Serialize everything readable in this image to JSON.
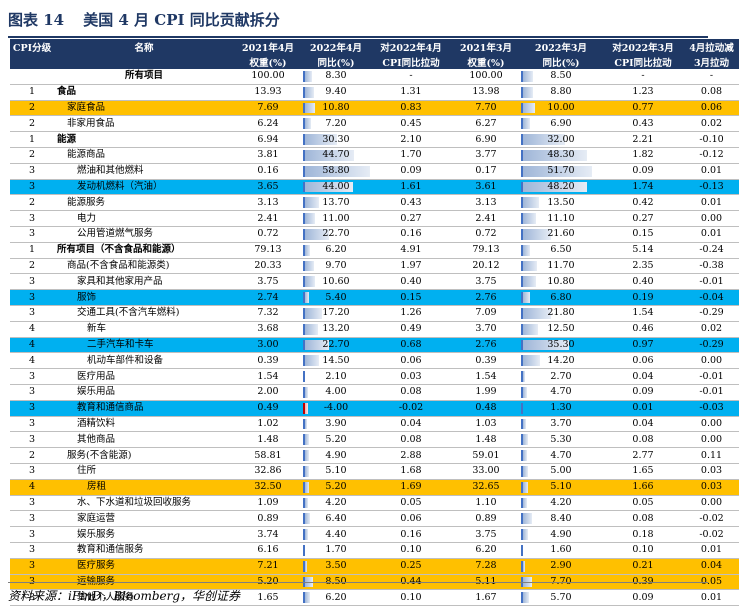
{
  "title": {
    "figure": "图表 14",
    "text": "美国 4 月 CPI 同比贡献拆分"
  },
  "headers": [
    {
      "l1": "CPI分级",
      "l2": ""
    },
    {
      "l1": "名称",
      "l2": ""
    },
    {
      "l1": "2021年4月",
      "l2": "权重(%)"
    },
    {
      "l1": "2022年4月",
      "l2": "同比(%)"
    },
    {
      "l1": "对2022年4月",
      "l2": "CPI同比拉动"
    },
    {
      "l1": "2021年3月",
      "l2": "权重(%)"
    },
    {
      "l1": "2022年3月",
      "l2": "同比(%)"
    },
    {
      "l1": "对2022年3月",
      "l2": "CPI同比拉动"
    },
    {
      "l1": "4月拉动减",
      "l2": "3月拉动"
    }
  ],
  "rows": [
    {
      "level": "",
      "name": "所有项目",
      "w21_4": "100.00",
      "y22_4": "8.30",
      "c22_4": "-",
      "w21_3": "100.00",
      "y22_3": "8.50",
      "c22_3": "-",
      "diff": "-",
      "bold": true,
      "center": true,
      "hl": ""
    },
    {
      "level": "1",
      "name": "食品",
      "w21_4": "13.93",
      "y22_4": "9.40",
      "c22_4": "1.31",
      "w21_3": "13.98",
      "y22_3": "8.80",
      "c22_3": "1.23",
      "diff": "0.08",
      "bold": true,
      "hl": ""
    },
    {
      "level": "2",
      "name": "家庭食品",
      "w21_4": "7.69",
      "y22_4": "10.80",
      "c22_4": "0.83",
      "w21_3": "7.70",
      "y22_3": "10.00",
      "c22_3": "0.77",
      "diff": "0.06",
      "hl": "yellow"
    },
    {
      "level": "2",
      "name": "非家用食品",
      "w21_4": "6.24",
      "y22_4": "7.20",
      "c22_4": "0.45",
      "w21_3": "6.27",
      "y22_3": "6.90",
      "c22_3": "0.43",
      "diff": "0.02",
      "hl": ""
    },
    {
      "level": "1",
      "name": "能源",
      "w21_4": "6.94",
      "y22_4": "30.30",
      "c22_4": "2.10",
      "w21_3": "6.90",
      "y22_3": "32.00",
      "c22_3": "2.21",
      "diff": "-0.10",
      "bold": true,
      "hl": ""
    },
    {
      "level": "2",
      "name": "能源商品",
      "w21_4": "3.81",
      "y22_4": "44.70",
      "c22_4": "1.70",
      "w21_3": "3.77",
      "y22_3": "48.30",
      "c22_3": "1.82",
      "diff": "-0.12",
      "hl": ""
    },
    {
      "level": "3",
      "name": "燃油和其他燃料",
      "w21_4": "0.16",
      "y22_4": "58.80",
      "c22_4": "0.09",
      "w21_3": "0.17",
      "y22_3": "51.70",
      "c22_3": "0.09",
      "diff": "0.01",
      "hl": ""
    },
    {
      "level": "3",
      "name": "发动机燃料（汽油）",
      "w21_4": "3.65",
      "y22_4": "44.00",
      "c22_4": "1.61",
      "w21_3": "3.61",
      "y22_3": "48.20",
      "c22_3": "1.74",
      "diff": "-0.13",
      "hl": "blue"
    },
    {
      "level": "2",
      "name": "能源服务",
      "w21_4": "3.13",
      "y22_4": "13.70",
      "c22_4": "0.43",
      "w21_3": "3.13",
      "y22_3": "13.50",
      "c22_3": "0.42",
      "diff": "0.01",
      "hl": ""
    },
    {
      "level": "3",
      "name": "电力",
      "w21_4": "2.41",
      "y22_4": "11.00",
      "c22_4": "0.27",
      "w21_3": "2.41",
      "y22_3": "11.10",
      "c22_3": "0.27",
      "diff": "0.00",
      "hl": ""
    },
    {
      "level": "3",
      "name": "公用管道燃气服务",
      "w21_4": "0.72",
      "y22_4": "22.70",
      "c22_4": "0.16",
      "w21_3": "0.72",
      "y22_3": "21.60",
      "c22_3": "0.15",
      "diff": "0.01",
      "hl": ""
    },
    {
      "level": "1",
      "name": "所有项目（不含食品和能源）",
      "w21_4": "79.13",
      "y22_4": "6.20",
      "c22_4": "4.91",
      "w21_3": "79.13",
      "y22_3": "6.50",
      "c22_3": "5.14",
      "diff": "-0.24",
      "bold": true,
      "hl": ""
    },
    {
      "level": "2",
      "name": "商品(不含食品和能源类)",
      "w21_4": "20.33",
      "y22_4": "9.70",
      "c22_4": "1.97",
      "w21_3": "20.12",
      "y22_3": "11.70",
      "c22_3": "2.35",
      "diff": "-0.38",
      "hl": ""
    },
    {
      "level": "3",
      "name": "家具和其他家用产品",
      "w21_4": "3.75",
      "y22_4": "10.60",
      "c22_4": "0.40",
      "w21_3": "3.75",
      "y22_3": "10.80",
      "c22_3": "0.40",
      "diff": "-0.01",
      "hl": ""
    },
    {
      "level": "3",
      "name": "服饰",
      "w21_4": "2.74",
      "y22_4": "5.40",
      "c22_4": "0.15",
      "w21_3": "2.76",
      "y22_3": "6.80",
      "c22_3": "0.19",
      "diff": "-0.04",
      "hl": "blue"
    },
    {
      "level": "3",
      "name": "交通工具(不含汽车燃料)",
      "w21_4": "7.32",
      "y22_4": "17.20",
      "c22_4": "1.26",
      "w21_3": "7.09",
      "y22_3": "21.80",
      "c22_3": "1.54",
      "diff": "-0.29",
      "hl": ""
    },
    {
      "level": "4",
      "name": "新车",
      "w21_4": "3.68",
      "y22_4": "13.20",
      "c22_4": "0.49",
      "w21_3": "3.70",
      "y22_3": "12.50",
      "c22_3": "0.46",
      "diff": "0.02",
      "hl": ""
    },
    {
      "level": "4",
      "name": "二手汽车和卡车",
      "w21_4": "3.00",
      "y22_4": "22.70",
      "c22_4": "0.68",
      "w21_3": "2.76",
      "y22_3": "35.30",
      "c22_3": "0.97",
      "diff": "-0.29",
      "hl": "blue"
    },
    {
      "level": "4",
      "name": "机动车部件和设备",
      "w21_4": "0.39",
      "y22_4": "14.50",
      "c22_4": "0.06",
      "w21_3": "0.39",
      "y22_3": "14.20",
      "c22_3": "0.06",
      "diff": "0.00",
      "hl": ""
    },
    {
      "level": "3",
      "name": "医疗用品",
      "w21_4": "1.54",
      "y22_4": "2.10",
      "c22_4": "0.03",
      "w21_3": "1.54",
      "y22_3": "2.70",
      "c22_3": "0.04",
      "diff": "-0.01",
      "hl": ""
    },
    {
      "level": "3",
      "name": "娱乐用品",
      "w21_4": "2.00",
      "y22_4": "4.00",
      "c22_4": "0.08",
      "w21_3": "1.99",
      "y22_3": "4.70",
      "c22_3": "0.09",
      "diff": "-0.01",
      "hl": ""
    },
    {
      "level": "3",
      "name": "教育和通信商品",
      "w21_4": "0.49",
      "y22_4": "-4.00",
      "c22_4": "-0.02",
      "w21_3": "0.48",
      "y22_3": "1.30",
      "c22_3": "0.01",
      "diff": "-0.03",
      "hl": "blue"
    },
    {
      "level": "3",
      "name": "酒精饮料",
      "w21_4": "1.02",
      "y22_4": "3.90",
      "c22_4": "0.04",
      "w21_3": "1.03",
      "y22_3": "3.70",
      "c22_3": "0.04",
      "diff": "0.00",
      "hl": ""
    },
    {
      "level": "3",
      "name": "其他商品",
      "w21_4": "1.48",
      "y22_4": "5.20",
      "c22_4": "0.08",
      "w21_3": "1.48",
      "y22_3": "5.30",
      "c22_3": "0.08",
      "diff": "0.00",
      "hl": ""
    },
    {
      "level": "2",
      "name": "服务(不含能源)",
      "w21_4": "58.81",
      "y22_4": "4.90",
      "c22_4": "2.88",
      "w21_3": "59.01",
      "y22_3": "4.70",
      "c22_3": "2.77",
      "diff": "0.11",
      "hl": ""
    },
    {
      "level": "3",
      "name": "住所",
      "w21_4": "32.86",
      "y22_4": "5.10",
      "c22_4": "1.68",
      "w21_3": "33.00",
      "y22_3": "5.00",
      "c22_3": "1.65",
      "diff": "0.03",
      "hl": ""
    },
    {
      "level": "4",
      "name": "房租",
      "w21_4": "32.50",
      "y22_4": "5.20",
      "c22_4": "1.69",
      "w21_3": "32.65",
      "y22_3": "5.10",
      "c22_3": "1.66",
      "diff": "0.03",
      "hl": "yellow"
    },
    {
      "level": "3",
      "name": "水、下水道和垃圾回收服务",
      "w21_4": "1.09",
      "y22_4": "4.20",
      "c22_4": "0.05",
      "w21_3": "1.10",
      "y22_3": "4.20",
      "c22_3": "0.05",
      "diff": "0.00",
      "hl": ""
    },
    {
      "level": "3",
      "name": "家庭运营",
      "w21_4": "0.89",
      "y22_4": "6.40",
      "c22_4": "0.06",
      "w21_3": "0.89",
      "y22_3": "8.40",
      "c22_3": "0.08",
      "diff": "-0.02",
      "hl": ""
    },
    {
      "level": "3",
      "name": "娱乐服务",
      "w21_4": "3.74",
      "y22_4": "4.40",
      "c22_4": "0.16",
      "w21_3": "3.75",
      "y22_3": "4.90",
      "c22_3": "0.18",
      "diff": "-0.02",
      "hl": ""
    },
    {
      "level": "3",
      "name": "教育和通信服务",
      "w21_4": "6.16",
      "y22_4": "1.70",
      "c22_4": "0.10",
      "w21_3": "6.20",
      "y22_3": "1.60",
      "c22_3": "0.10",
      "diff": "0.01",
      "hl": ""
    },
    {
      "level": "3",
      "name": "医疗服务",
      "w21_4": "7.21",
      "y22_4": "3.50",
      "c22_4": "0.25",
      "w21_3": "7.28",
      "y22_3": "2.90",
      "c22_3": "0.21",
      "diff": "0.04",
      "hl": "yellow"
    },
    {
      "level": "3",
      "name": "运输服务",
      "w21_4": "5.20",
      "y22_4": "8.50",
      "c22_4": "0.44",
      "w21_3": "5.11",
      "y22_3": "7.70",
      "c22_3": "0.39",
      "diff": "0.05",
      "hl": "yellow"
    },
    {
      "level": "3",
      "name": "其他个人服务",
      "w21_4": "1.65",
      "y22_4": "6.20",
      "c22_4": "0.10",
      "w21_3": "1.67",
      "y22_3": "5.70",
      "c22_3": "0.09",
      "diff": "0.01",
      "hl": ""
    }
  ],
  "bar_scale_max": 60,
  "source": "资料来源：iFinD，Bloomberg，华创证券"
}
